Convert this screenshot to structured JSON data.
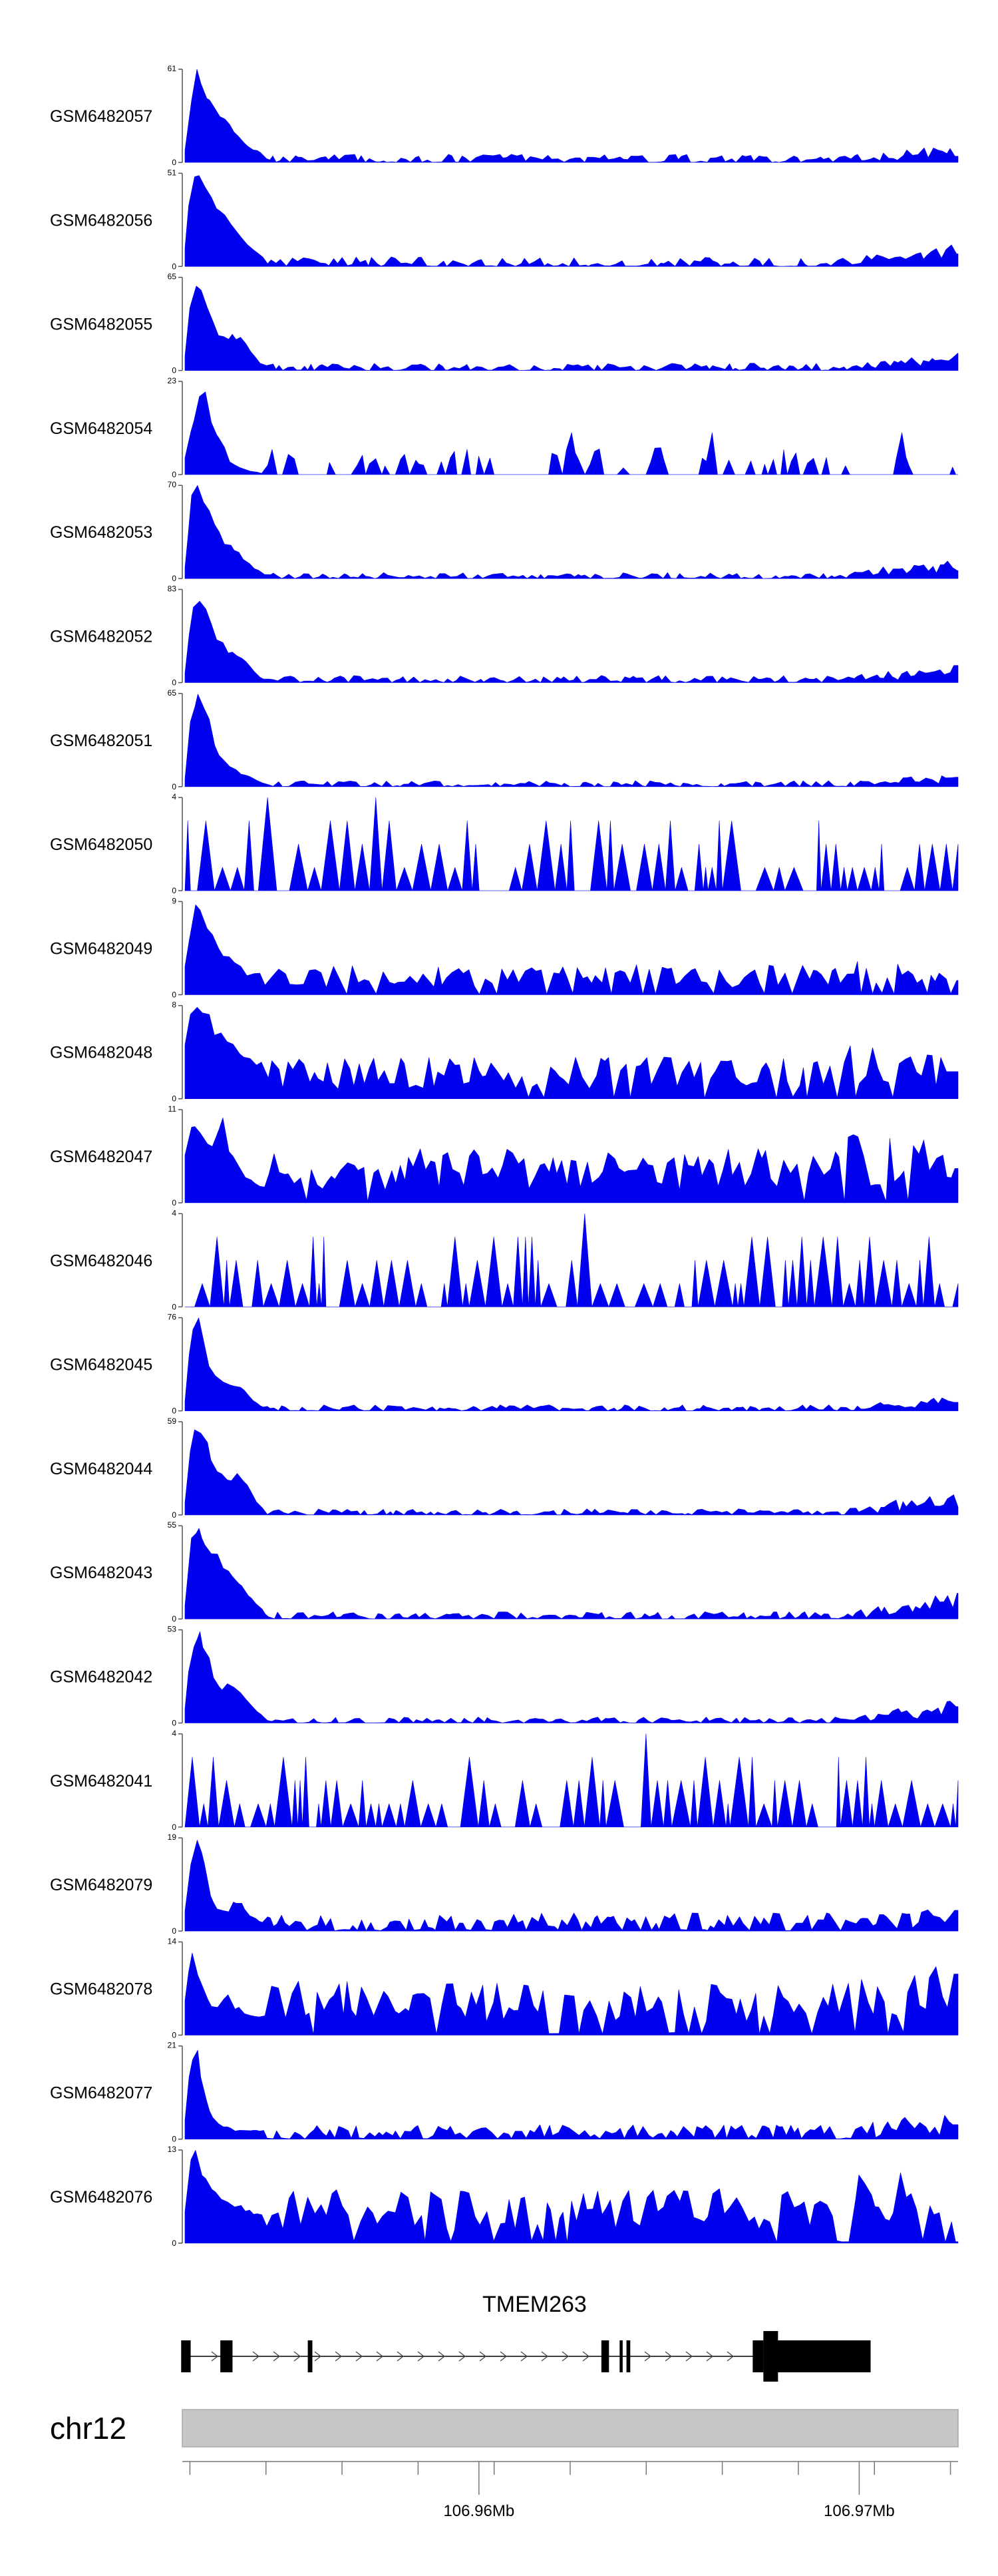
{
  "chart_data": {
    "type": "area",
    "title": "",
    "color": "#0000ee",
    "x_unit": "Mb",
    "xlim": [
      106.9522,
      106.9726
    ],
    "tracks": [
      {
        "name": "GSM6482057",
        "ymax": 61,
        "profile": "peak",
        "noise": 0.07,
        "tail": 0.1,
        "values": [
          8,
          40,
          61,
          50,
          42,
          36,
          30,
          25,
          20,
          16,
          12,
          9,
          7,
          5
        ]
      },
      {
        "name": "GSM6482056",
        "ymax": 51,
        "profile": "peak",
        "noise": 0.08,
        "tail": 0.15,
        "values": [
          10,
          48,
          51,
          44,
          40,
          35,
          30,
          26,
          22,
          18,
          14,
          10,
          7,
          5
        ]
      },
      {
        "name": "GSM6482055",
        "ymax": 65,
        "profile": "peak",
        "noise": 0.06,
        "tail": 0.15,
        "values": [
          10,
          50,
          65,
          60,
          40,
          30,
          25,
          22,
          25,
          23,
          18,
          12,
          6,
          3
        ]
      },
      {
        "name": "GSM6482054",
        "ymax": 23,
        "profile": "sparse",
        "noise": 0.14,
        "tail": 0.3,
        "values": [
          4,
          12,
          18,
          23,
          14,
          10,
          8,
          6,
          4,
          3,
          2,
          1,
          1,
          0
        ]
      },
      {
        "name": "GSM6482053",
        "ymax": 70,
        "profile": "peak",
        "noise": 0.05,
        "tail": 0.2,
        "values": [
          8,
          60,
          70,
          62,
          50,
          40,
          30,
          26,
          22,
          18,
          14,
          9,
          6,
          3
        ]
      },
      {
        "name": "GSM6482052",
        "ymax": 83,
        "profile": "peak",
        "noise": 0.06,
        "tail": 0.15,
        "values": [
          8,
          60,
          83,
          70,
          55,
          42,
          35,
          30,
          28,
          24,
          18,
          12,
          6,
          3
        ]
      },
      {
        "name": "GSM6482051",
        "ymax": 65,
        "profile": "peak",
        "noise": 0.05,
        "tail": 0.1,
        "values": [
          6,
          50,
          65,
          60,
          45,
          30,
          20,
          14,
          12,
          10,
          8,
          6,
          4,
          2
        ]
      },
      {
        "name": "GSM6482050",
        "ymax": 4,
        "profile": "spiky",
        "noise": 0.0,
        "tail": 0.0,
        "values": []
      },
      {
        "name": "GSM6482049",
        "ymax": 9,
        "profile": "dense",
        "noise": 0.0,
        "tail": 0.25,
        "values": [
          3,
          7,
          9,
          8,
          6,
          5,
          4,
          4,
          3,
          3,
          2,
          2,
          2,
          2
        ]
      },
      {
        "name": "GSM6482048",
        "ymax": 8,
        "profile": "dense",
        "noise": 0.0,
        "tail": 0.35,
        "values": [
          5,
          8,
          8,
          7,
          7,
          6,
          6,
          5,
          5,
          4,
          4,
          3,
          3,
          3
        ]
      },
      {
        "name": "GSM6482047",
        "ymax": 11,
        "profile": "dense",
        "noise": 0.0,
        "tail": 0.45,
        "values": [
          6,
          9,
          10,
          8,
          7,
          8,
          11,
          7,
          5,
          4,
          3,
          3,
          2,
          2
        ]
      },
      {
        "name": "GSM6482046",
        "ymax": 4,
        "profile": "spiky",
        "noise": 0.0,
        "tail": 0.0,
        "values": []
      },
      {
        "name": "GSM6482045",
        "ymax": 76,
        "profile": "peak",
        "noise": 0.05,
        "tail": 0.12,
        "values": [
          8,
          60,
          76,
          60,
          38,
          28,
          24,
          20,
          22,
          20,
          16,
          10,
          5,
          3
        ]
      },
      {
        "name": "GSM6482044",
        "ymax": 59,
        "profile": "peak",
        "noise": 0.05,
        "tail": 0.25,
        "values": [
          8,
          50,
          59,
          52,
          40,
          30,
          25,
          22,
          24,
          26,
          22,
          14,
          6,
          3
        ]
      },
      {
        "name": "GSM6482043",
        "ymax": 55,
        "profile": "peak",
        "noise": 0.06,
        "tail": 0.25,
        "values": [
          8,
          50,
          55,
          48,
          44,
          38,
          32,
          28,
          24,
          20,
          16,
          12,
          8,
          5
        ]
      },
      {
        "name": "GSM6482042",
        "ymax": 53,
        "profile": "peak",
        "noise": 0.05,
        "tail": 0.25,
        "values": [
          8,
          45,
          53,
          45,
          35,
          25,
          20,
          24,
          22,
          18,
          14,
          9,
          6,
          3
        ]
      },
      {
        "name": "GSM6482041",
        "ymax": 4,
        "profile": "spiky",
        "noise": 0.0,
        "tail": 0.0,
        "values": []
      },
      {
        "name": "GSM6482079",
        "ymax": 19,
        "profile": "peak",
        "noise": 0.15,
        "tail": 0.1,
        "values": [
          4,
          16,
          19,
          14,
          8,
          5,
          4,
          4,
          6,
          6,
          4,
          3,
          2,
          2
        ]
      },
      {
        "name": "GSM6482078",
        "ymax": 14,
        "profile": "dense",
        "noise": 0.0,
        "tail": 0.45,
        "values": [
          5,
          14,
          10,
          7,
          5,
          4,
          5,
          6,
          4,
          4,
          3,
          3,
          3,
          3
        ]
      },
      {
        "name": "GSM6482077",
        "ymax": 21,
        "profile": "peak",
        "noise": 0.12,
        "tail": 0.15,
        "values": [
          4,
          20,
          21,
          12,
          6,
          4,
          3,
          3,
          2,
          2,
          2,
          2,
          2,
          2
        ]
      },
      {
        "name": "GSM6482076",
        "ymax": 13,
        "profile": "dense",
        "noise": 0.0,
        "tail": 0.45,
        "values": [
          5,
          12,
          13,
          10,
          8,
          7,
          6,
          6,
          5,
          5,
          5,
          4,
          4,
          4
        ]
      }
    ],
    "gene": {
      "name": "TMEM263",
      "strand": "+",
      "start": 106.9522,
      "end": 106.9695,
      "exons": [
        [
          106.95217,
          106.95242
        ],
        [
          106.9532,
          106.95352
        ],
        [
          106.9555,
          106.95562
        ],
        [
          106.96322,
          106.96342
        ],
        [
          106.9637,
          106.96378
        ],
        [
          106.96388,
          106.96398
        ],
        [
          106.9672,
          106.96748
        ]
      ],
      "thick_exons": [
        [
          106.96748,
          106.9703
        ]
      ]
    },
    "chromosome": "chr12",
    "axis_ticks": [
      106.9524,
      106.9544,
      106.9564,
      106.9584,
      106.9604,
      106.9624,
      106.9644,
      106.9664,
      106.9684,
      106.9704,
      106.9724
    ],
    "axis_labels": [
      {
        "value": 106.96,
        "label": "106.96Mb"
      },
      {
        "value": 106.97,
        "label": "106.97Mb"
      }
    ]
  }
}
